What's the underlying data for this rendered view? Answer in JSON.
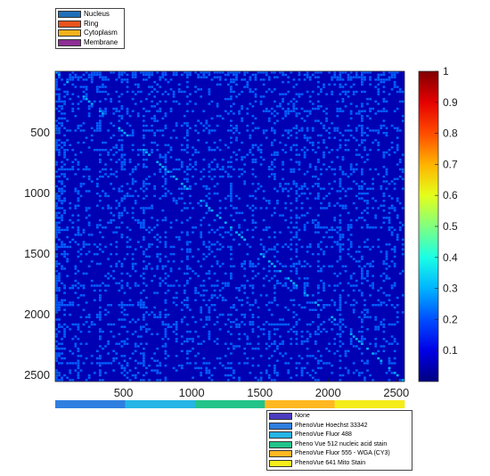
{
  "chart_data": {
    "type": "heatmap",
    "title": "",
    "xlabel": "",
    "ylabel": "",
    "n": 2560,
    "xlim": [
      0,
      2560
    ],
    "ylim": [
      0,
      2560
    ],
    "x_ticks": [
      500,
      1000,
      1500,
      2000,
      2500
    ],
    "y_ticks": [
      500,
      1000,
      1500,
      2000,
      2500
    ],
    "x_tick_labels": [
      "500",
      "1000",
      "1500",
      "2000",
      "2500"
    ],
    "y_tick_labels": [
      "500",
      "1000",
      "1500",
      "2000",
      "2500"
    ],
    "colorbar": {
      "range": [
        0,
        1
      ],
      "ticks": [
        0.1,
        0.2,
        0.3,
        0.4,
        0.5,
        0.6,
        0.7,
        0.8,
        0.9,
        1
      ],
      "tick_labels": [
        "0.1",
        "0.2",
        "0.3",
        "0.4",
        "0.5",
        "0.6",
        "0.7",
        "0.8",
        "0.9",
        "1"
      ],
      "colormap": "jet"
    },
    "background_value": 0.05,
    "pattern_value": 0.22,
    "diagonal_value": 0.3,
    "compartment_legend": {
      "placement": "top-left",
      "entries": [
        {
          "label": "Nucleus",
          "color": "#1f6fb8"
        },
        {
          "label": "Ring",
          "color": "#e8531c"
        },
        {
          "label": "Cytoplasm",
          "color": "#f3b21b"
        },
        {
          "label": "Membrane",
          "color": "#8e2f96"
        }
      ]
    },
    "compartment_bar_sequence": [
      0,
      1,
      2,
      3,
      0,
      1,
      2,
      3,
      0,
      1,
      2,
      3,
      0,
      1,
      2,
      3,
      0,
      1,
      2,
      3
    ],
    "channel_legend": {
      "placement": "bottom-right",
      "entries": [
        {
          "label": "None",
          "color": "#4b3cbf"
        },
        {
          "label": "PhenoVue Hoechst 33342",
          "color": "#2f7fe0"
        },
        {
          "label": "PhenoVue Fluor 488",
          "color": "#25b5e6"
        },
        {
          "label": "Pheno Vue 512 nucleic acid stain",
          "color": "#22c48a"
        },
        {
          "label": "PhenoVue Fluor 555 - WGA (CY3)",
          "color": "#ffb820"
        },
        {
          "label": "PhenoVue 641 Mito Stain",
          "color": "#f5ec1a"
        }
      ]
    },
    "channel_bar_segments": [
      {
        "channel": 1,
        "start": 0,
        "end": 512
      },
      {
        "channel": 2,
        "start": 512,
        "end": 1024
      },
      {
        "channel": 3,
        "start": 1024,
        "end": 1536
      },
      {
        "channel": 4,
        "start": 1536,
        "end": 2048
      },
      {
        "channel": 5,
        "start": 2048,
        "end": 2560
      }
    ]
  }
}
